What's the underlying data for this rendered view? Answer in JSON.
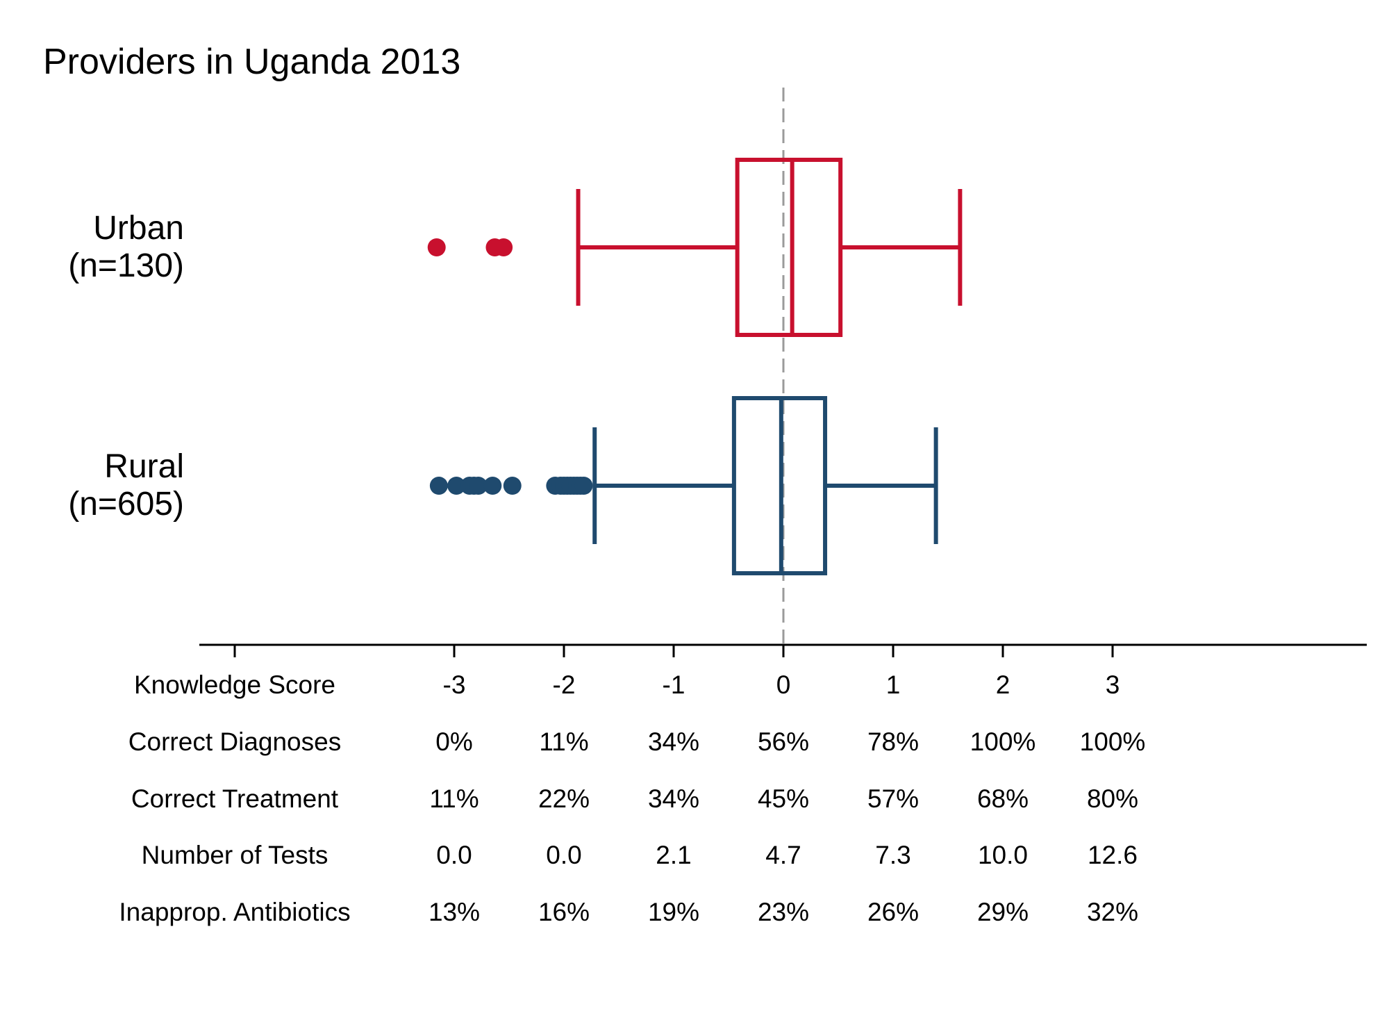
{
  "chart_data": {
    "type": "boxplot",
    "title": "Providers in Uganda 2013",
    "orientation": "horizontal",
    "reference_line_x": 0,
    "xlim": [
      -3.5,
      5.4
    ],
    "x_ticks": [
      -3,
      -2,
      -1,
      0,
      1,
      2,
      3
    ],
    "groups": [
      {
        "label_line1": "Urban",
        "label_line2": "(n=130)",
        "color": "#C8102E",
        "whisker_low": -1.87,
        "q1": -0.42,
        "median": 0.08,
        "q3": 0.52,
        "whisker_high": 1.61,
        "outliers": [
          -3.16,
          -2.55,
          -2.63
        ]
      },
      {
        "label_line1": "Rural",
        "label_line2": "(n=605)",
        "color": "#1F4A6E",
        "whisker_low": -1.72,
        "q1": -0.45,
        "median": -0.02,
        "q3": 0.38,
        "whisker_high": 1.39,
        "outliers": [
          -3.14,
          -2.98,
          -2.86,
          -2.82,
          -2.78,
          -2.65,
          -2.47,
          -2.08,
          -2.03,
          -2.0,
          -1.97,
          -1.94,
          -1.91,
          -1.88,
          -1.85,
          -1.82
        ]
      }
    ],
    "table": {
      "rows": [
        {
          "label": "Knowledge Score",
          "values": [
            "-3",
            "-2",
            "-1",
            "0",
            "1",
            "2",
            "3"
          ]
        },
        {
          "label": "Correct Diagnoses",
          "values": [
            "0%",
            "11%",
            "34%",
            "56%",
            "78%",
            "100%",
            "100%"
          ]
        },
        {
          "label": "Correct Treatment",
          "values": [
            "11%",
            "22%",
            "34%",
            "45%",
            "57%",
            "68%",
            "80%"
          ]
        },
        {
          "label": "Number of Tests",
          "values": [
            "0.0",
            "0.0",
            "2.1",
            "4.7",
            "7.3",
            "10.0",
            "12.6"
          ]
        },
        {
          "label": "Inapprop. Antibiotics",
          "values": [
            "13%",
            "16%",
            "19%",
            "23%",
            "26%",
            "29%",
            "32%"
          ]
        }
      ]
    }
  }
}
